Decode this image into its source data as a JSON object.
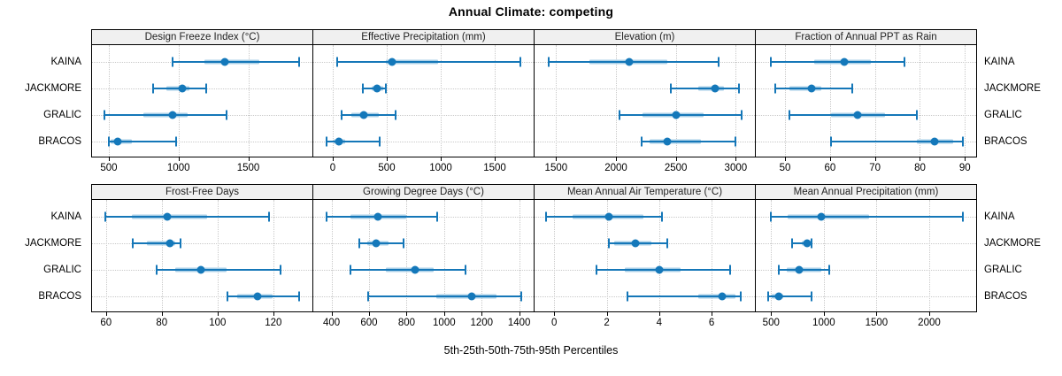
{
  "title": "Annual Climate: competing",
  "x_axis_caption": "5th-25th-50th-75th-95th Percentiles",
  "sites": [
    "KAINA",
    "JACKMORE",
    "GRALIC",
    "BRACOS"
  ],
  "percentile_scheme": [
    "5th",
    "25th",
    "50th",
    "75th",
    "95th"
  ],
  "colors": {
    "line": "#1577b8",
    "dot": "#1478ba",
    "band": "#a9cfe7",
    "grid": "#c9c9c9",
    "strip_bg": "#f0f0f0",
    "border": "#000000"
  },
  "chart_data": {
    "type": "dotplot-range-trellis",
    "layout": {
      "rows": 2,
      "cols": 4
    },
    "grid": true,
    "panels": [
      {
        "title": "Design Freeze Index (°C)",
        "xlim": [
          380,
          1960
        ],
        "ticks": [
          500,
          1000,
          1500
        ],
        "series": [
          {
            "site": "KAINA",
            "percentiles": [
              960,
              1185,
              1330,
              1580,
              1865
            ]
          },
          {
            "site": "JACKMORE",
            "percentiles": [
              820,
              910,
              1030,
              1080,
              1200
            ]
          },
          {
            "site": "GRALIC",
            "percentiles": [
              470,
              750,
              955,
              1065,
              1345
            ]
          },
          {
            "site": "BRACOS",
            "percentiles": [
              500,
              515,
              565,
              665,
              985
            ]
          }
        ]
      },
      {
        "title": "Effective Precipitation (mm)",
        "xlim": [
          -180,
          1860
        ],
        "ticks": [
          0,
          500,
          1000,
          1500
        ],
        "series": [
          {
            "site": "KAINA",
            "percentiles": [
              45,
              490,
              550,
              975,
              1740
            ]
          },
          {
            "site": "JACKMORE",
            "percentiles": [
              280,
              360,
              410,
              470,
              490
            ]
          },
          {
            "site": "GRALIC",
            "percentiles": [
              85,
              170,
              290,
              425,
              585
            ]
          },
          {
            "site": "BRACOS",
            "percentiles": [
              -55,
              5,
              60,
              115,
              435
            ]
          }
        ]
      },
      {
        "title": "Elevation (m)",
        "xlim": [
          1320,
          3160
        ],
        "ticks": [
          1500,
          2000,
          2500,
          3000
        ],
        "series": [
          {
            "site": "KAINA",
            "percentiles": [
              1435,
              1780,
              2110,
              2425,
              2860
            ]
          },
          {
            "site": "JACKMORE",
            "percentiles": [
              2460,
              2685,
              2830,
              2905,
              3030
            ]
          },
          {
            "site": "GRALIC",
            "percentiles": [
              2030,
              2220,
              2505,
              2730,
              3050
            ]
          },
          {
            "site": "BRACOS",
            "percentiles": [
              2215,
              2280,
              2430,
              2710,
              2995
            ]
          }
        ]
      },
      {
        "title": "Fraction of Annual PPT as Rain",
        "xlim": [
          43.5,
          92.5
        ],
        "ticks": [
          50,
          60,
          70,
          80,
          90
        ],
        "series": [
          {
            "site": "KAINA",
            "percentiles": [
              46.8,
              56.4,
              63.1,
              69.0,
              76.5
            ]
          },
          {
            "site": "JACKMORE",
            "percentiles": [
              47.9,
              51.0,
              55.9,
              58.0,
              65.0
            ]
          },
          {
            "site": "GRALIC",
            "percentiles": [
              51.0,
              60.2,
              66.1,
              72.3,
              79.4
            ]
          },
          {
            "site": "BRACOS",
            "percentiles": [
              60.3,
              79.3,
              83.3,
              87.3,
              89.5
            ]
          }
        ]
      },
      {
        "title": "Frost-Free Days",
        "xlim": [
          55,
          134
        ],
        "ticks": [
          60,
          80,
          100,
          120
        ],
        "series": [
          {
            "site": "KAINA",
            "percentiles": [
              59.8,
              69.3,
              82.0,
              96.4,
              118.5
            ]
          },
          {
            "site": "JACKMORE",
            "percentiles": [
              69.6,
              74.6,
              82.9,
              84.7,
              86.8
            ]
          },
          {
            "site": "GRALIC",
            "percentiles": [
              78.1,
              84.7,
              93.9,
              103.2,
              122.5
            ]
          },
          {
            "site": "BRACOS",
            "percentiles": [
              103.5,
              106.9,
              114.3,
              119.6,
              129.3
            ]
          }
        ]
      },
      {
        "title": "Growing Degree Days (°C)",
        "xlim": [
          303,
          1477
        ],
        "ticks": [
          400,
          600,
          800,
          1000,
          1200,
          1400
        ],
        "series": [
          {
            "site": "KAINA",
            "percentiles": [
              375,
              500,
              645,
              800,
              965
            ]
          },
          {
            "site": "JACKMORE",
            "percentiles": [
              550,
              590,
              640,
              705,
              785
            ]
          },
          {
            "site": "GRALIC",
            "percentiles": [
              500,
              690,
              845,
              945,
              1115
            ]
          },
          {
            "site": "BRACOS",
            "percentiles": [
              595,
              960,
              1145,
              1280,
              1410
            ]
          }
        ]
      },
      {
        "title": "Mean Annual Air Temperature (°C)",
        "xlim": [
          -0.75,
          7.65
        ],
        "ticks": [
          0,
          2,
          4,
          6
        ],
        "series": [
          {
            "site": "KAINA",
            "percentiles": [
              -0.3,
              0.7,
              2.1,
              3.4,
              4.1
            ]
          },
          {
            "site": "JACKMORE",
            "percentiles": [
              2.1,
              2.3,
              3.1,
              3.7,
              4.3
            ]
          },
          {
            "site": "GRALIC",
            "percentiles": [
              1.6,
              2.7,
              4.0,
              4.8,
              6.7
            ]
          },
          {
            "site": "BRACOS",
            "percentiles": [
              2.8,
              5.5,
              6.4,
              6.9,
              7.1
            ]
          }
        ]
      },
      {
        "title": "Mean Annual Precipitation (mm)",
        "xlim": [
          355,
          2445
        ],
        "ticks": [
          500,
          1000,
          1500,
          2000
        ],
        "series": [
          {
            "site": "KAINA",
            "percentiles": [
              500,
              660,
              980,
              1430,
              2320
            ]
          },
          {
            "site": "JACKMORE",
            "percentiles": [
              695,
              795,
              840,
              865,
              880
            ]
          },
          {
            "site": "GRALIC",
            "percentiles": [
              570,
              645,
              765,
              975,
              1055
            ]
          },
          {
            "site": "BRACOS",
            "percentiles": [
              470,
              505,
              570,
              615,
              880
            ]
          }
        ]
      }
    ]
  }
}
